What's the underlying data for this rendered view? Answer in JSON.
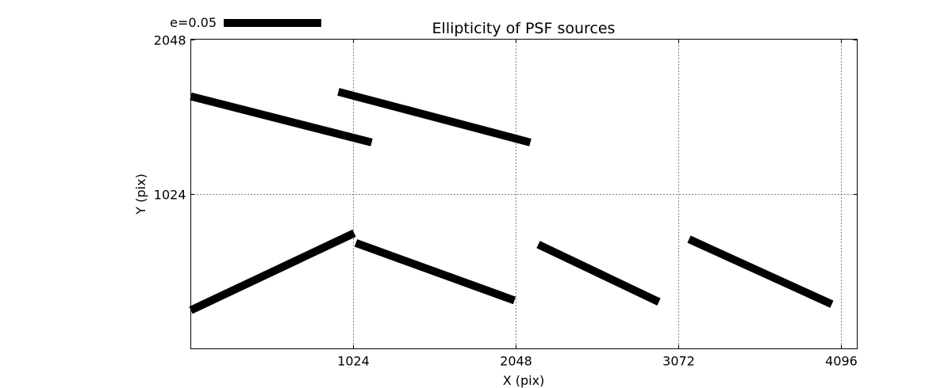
{
  "chart_data": {
    "type": "line",
    "title": "Ellipticity of PSF sources",
    "xlabel": "X (pix)",
    "ylabel": "Y (pix)",
    "xlim": [
      0,
      4200
    ],
    "ylim": [
      0,
      2048
    ],
    "xticks": [
      1024,
      2048,
      3072,
      4096
    ],
    "yticks": [
      1024,
      2048
    ],
    "grid": true,
    "legend": {
      "label": "e=0.05",
      "position": "top-left outside"
    },
    "colors": {
      "stick": "#000000",
      "grid": "#000000",
      "axes": "#000000"
    },
    "series": [
      {
        "x": [
          0,
          1140
        ],
        "y": [
          1670,
          1365
        ]
      },
      {
        "x": [
          930,
          2140
        ],
        "y": [
          1700,
          1365
        ]
      },
      {
        "x": [
          0,
          1030
        ],
        "y": [
          255,
          765
        ]
      },
      {
        "x": [
          1040,
          2040
        ],
        "y": [
          700,
          320
        ]
      },
      {
        "x": [
          2190,
          2950
        ],
        "y": [
          690,
          310
        ]
      },
      {
        "x": [
          3140,
          4040
        ],
        "y": [
          725,
          295
        ]
      }
    ]
  }
}
